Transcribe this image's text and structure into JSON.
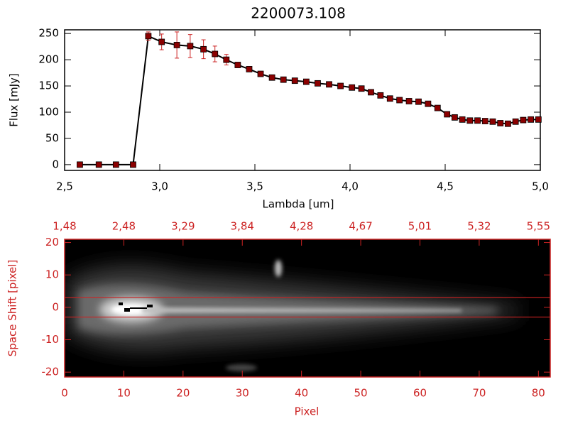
{
  "chart_data": [
    {
      "type": "line",
      "title": "2200073.108",
      "xlabel": "Lambda [um]",
      "ylabel": "Flux [mJy]",
      "x": [
        2.58,
        2.68,
        2.77,
        2.86,
        2.94,
        3.01,
        3.09,
        3.16,
        3.23,
        3.29,
        3.35,
        3.41,
        3.47,
        3.53,
        3.59,
        3.65,
        3.71,
        3.77,
        3.83,
        3.89,
        3.95,
        4.01,
        4.06,
        4.11,
        4.16,
        4.21,
        4.26,
        4.31,
        4.36,
        4.41,
        4.46,
        4.51,
        4.55,
        4.59,
        4.63,
        4.67,
        4.71,
        4.75,
        4.79,
        4.83,
        4.87,
        4.91,
        4.95,
        4.99
      ],
      "values": [
        0,
        0,
        0,
        0,
        245,
        234,
        228,
        226,
        220,
        211,
        200,
        190,
        182,
        173,
        166,
        162,
        160,
        158,
        155,
        153,
        150,
        147,
        145,
        138,
        132,
        126,
        123,
        121,
        120,
        116,
        108,
        96,
        90,
        86,
        84,
        84,
        83,
        82,
        79,
        78,
        82,
        85,
        86,
        86
      ],
      "errors": [
        0,
        0,
        0,
        0,
        8,
        15,
        25,
        22,
        18,
        15,
        10,
        5,
        3,
        3,
        3,
        3,
        3,
        3,
        3,
        3,
        3,
        3,
        3,
        3,
        3,
        3,
        3,
        3,
        3,
        3,
        3,
        3,
        3,
        3,
        3,
        3,
        3,
        3,
        3,
        3,
        3,
        3,
        3,
        3
      ],
      "color": "#000000",
      "marker_color": "#8b0000",
      "error_color": "#cc2222",
      "xlim": [
        2.5,
        5.0
      ],
      "ylim": [
        -11,
        257
      ],
      "xticks": [
        {
          "value": 2.5,
          "label": "2,5"
        },
        {
          "value": 3.0,
          "label": "3,0"
        },
        {
          "value": 3.5,
          "label": "3,5"
        },
        {
          "value": 4.0,
          "label": "4,0"
        },
        {
          "value": 4.5,
          "label": "4,5"
        },
        {
          "value": 5.0,
          "label": "5,0"
        }
      ],
      "yticks": [
        0,
        50,
        100,
        150,
        200,
        250
      ]
    },
    {
      "type": "image",
      "xlabel": "Pixel",
      "ylabel": "Space Shift [pixel]",
      "color": "#cc2222",
      "xlim": [
        0,
        82
      ],
      "ylim": [
        -21.5,
        21
      ],
      "xticks": [
        0,
        10,
        20,
        30,
        40,
        50,
        60,
        70,
        80
      ],
      "x2ticks": [
        {
          "value": 0,
          "label": "1,48"
        },
        {
          "value": 10,
          "label": "2,48"
        },
        {
          "value": 20,
          "label": "3,29"
        },
        {
          "value": 30,
          "label": "3,84"
        },
        {
          "value": 40,
          "label": "4,28"
        },
        {
          "value": 50,
          "label": "4,67"
        },
        {
          "value": 60,
          "label": "5,01"
        },
        {
          "value": 70,
          "label": "5,32"
        },
        {
          "value": 80,
          "label": "5,55"
        }
      ],
      "yticks": [
        -20,
        -10,
        0,
        10,
        20
      ],
      "aperture": [
        -3,
        3
      ]
    }
  ]
}
